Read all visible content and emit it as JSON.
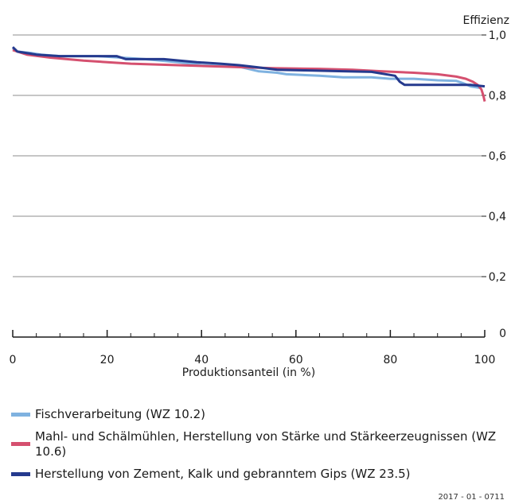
{
  "chart_data": {
    "type": "line",
    "title": "",
    "xlabel": "Produktionsanteil (in %)",
    "ylabel": "Effizienz",
    "xlim": [
      0,
      100
    ],
    "ylim": [
      0,
      1.0
    ],
    "x_ticks": [
      0,
      20,
      40,
      60,
      80,
      100
    ],
    "x_tick_labels": [
      "0",
      "20",
      "40",
      "60",
      "80",
      "100"
    ],
    "y_ticks": [
      0,
      0.2,
      0.4,
      0.6,
      0.8,
      1.0
    ],
    "y_tick_labels": [
      "0",
      "0,2",
      "0,4",
      "0,6",
      "0,8",
      "1,0"
    ],
    "y_axis_side": "right",
    "grid": "horizontal",
    "legend_position": "bottom",
    "series": [
      {
        "name": "Fischverarbeitung (WZ 10.2)",
        "color": "#7fb2e0",
        "points": [
          [
            0,
            0.955
          ],
          [
            1,
            0.945
          ],
          [
            4,
            0.94
          ],
          [
            6,
            0.935
          ],
          [
            10,
            0.93
          ],
          [
            18,
            0.93
          ],
          [
            23,
            0.925
          ],
          [
            28,
            0.92
          ],
          [
            35,
            0.91
          ],
          [
            38,
            0.905
          ],
          [
            40,
            0.9
          ],
          [
            48,
            0.895
          ],
          [
            52,
            0.88
          ],
          [
            56,
            0.875
          ],
          [
            58,
            0.87
          ],
          [
            65,
            0.865
          ],
          [
            70,
            0.86
          ],
          [
            76,
            0.86
          ],
          [
            80,
            0.855
          ],
          [
            85,
            0.855
          ],
          [
            90,
            0.85
          ],
          [
            94,
            0.848
          ],
          [
            95.5,
            0.84
          ],
          [
            97,
            0.83
          ],
          [
            99,
            0.825
          ]
        ]
      },
      {
        "name": "Mahl- und Schälmühlen, Herstellung von Stärke und Stärkeerzeugnissen (WZ 10.6)",
        "color": "#d5506f",
        "points": [
          [
            0,
            0.95
          ],
          [
            3,
            0.935
          ],
          [
            8,
            0.925
          ],
          [
            15,
            0.915
          ],
          [
            25,
            0.905
          ],
          [
            35,
            0.9
          ],
          [
            45,
            0.895
          ],
          [
            55,
            0.89
          ],
          [
            65,
            0.888
          ],
          [
            72,
            0.885
          ],
          [
            78,
            0.88
          ],
          [
            85,
            0.875
          ],
          [
            90,
            0.87
          ],
          [
            94,
            0.862
          ],
          [
            96,
            0.855
          ],
          [
            97.5,
            0.845
          ],
          [
            98.5,
            0.835
          ],
          [
            99.3,
            0.82
          ],
          [
            99.7,
            0.8
          ],
          [
            100,
            0.78
          ]
        ]
      },
      {
        "name": "Herstellung von Zement, Kalk und gebranntem Gips (WZ 23.5)",
        "color": "#253a8e",
        "points": [
          [
            0,
            0.96
          ],
          [
            1,
            0.945
          ],
          [
            5,
            0.935
          ],
          [
            10,
            0.93
          ],
          [
            22,
            0.93
          ],
          [
            24,
            0.92
          ],
          [
            32,
            0.92
          ],
          [
            39,
            0.91
          ],
          [
            44,
            0.905
          ],
          [
            48,
            0.9
          ],
          [
            52,
            0.893
          ],
          [
            56,
            0.885
          ],
          [
            62,
            0.883
          ],
          [
            70,
            0.88
          ],
          [
            76,
            0.878
          ],
          [
            81,
            0.865
          ],
          [
            82,
            0.845
          ],
          [
            83,
            0.835
          ],
          [
            88,
            0.835
          ],
          [
            97,
            0.835
          ],
          [
            100,
            0.83
          ]
        ]
      }
    ]
  },
  "source_code": "2017 - 01 - 0711"
}
